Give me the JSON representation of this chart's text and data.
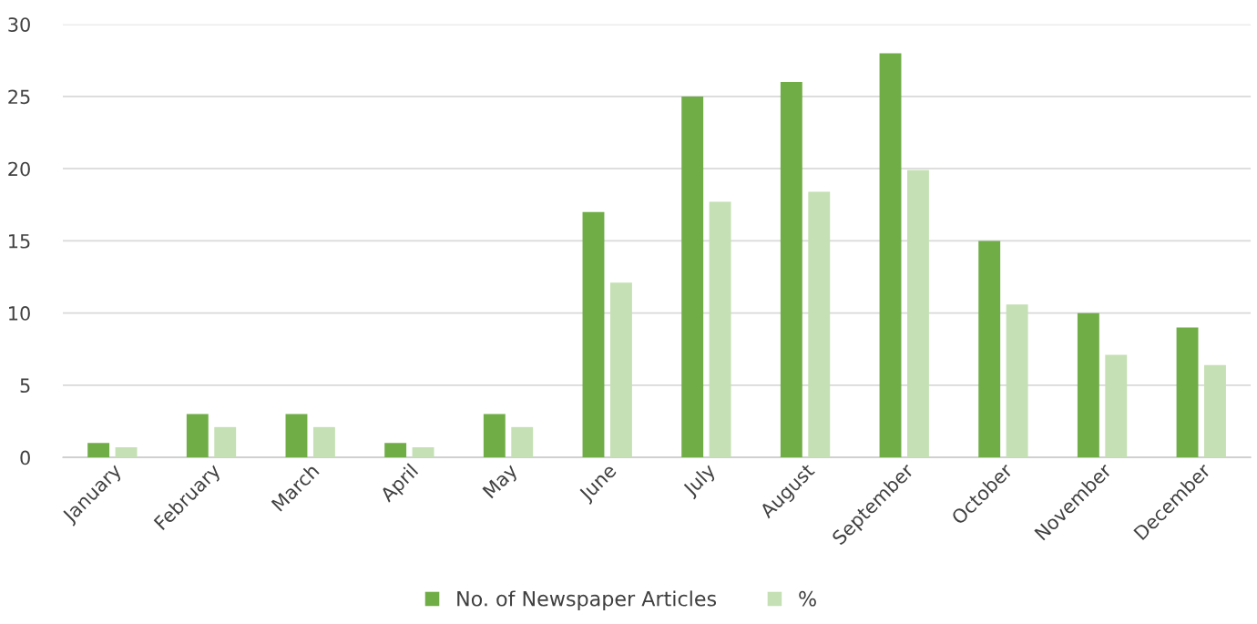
{
  "chart_data": {
    "type": "bar",
    "categories": [
      "January",
      "February",
      "March",
      "April",
      "May",
      "June",
      "July",
      "August",
      "September",
      "October",
      "November",
      "December"
    ],
    "series": [
      {
        "name": "No. of Newspaper Articles",
        "color": "#70ad47",
        "values": [
          1,
          3,
          3,
          1,
          3,
          17,
          25,
          26,
          28,
          15,
          10,
          9
        ]
      },
      {
        "name": "%",
        "color": "#c5e0b4",
        "values": [
          0.7,
          2.1,
          2.1,
          0.7,
          2.1,
          12.1,
          17.7,
          18.4,
          19.9,
          10.6,
          7.1,
          6.4
        ]
      }
    ],
    "ylim": [
      0,
      30
    ],
    "yticks": [
      0,
      5,
      10,
      15,
      20,
      25,
      30
    ],
    "grid": "y",
    "legend": "bottom"
  }
}
